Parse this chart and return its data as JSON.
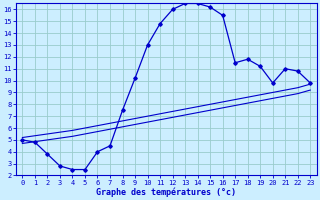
{
  "xlabel": "Graphe des températures (°c)",
  "bg_color": "#cceeff",
  "grid_color": "#99cccc",
  "line_color": "#0000cc",
  "xlim": [
    -0.5,
    23.5
  ],
  "ylim": [
    2,
    16.5
  ],
  "xticks": [
    0,
    1,
    2,
    3,
    4,
    5,
    6,
    7,
    8,
    9,
    10,
    11,
    12,
    13,
    14,
    15,
    16,
    17,
    18,
    19,
    20,
    21,
    22,
    23
  ],
  "yticks": [
    2,
    3,
    4,
    5,
    6,
    7,
    8,
    9,
    10,
    11,
    12,
    13,
    14,
    15,
    16
  ],
  "main_x": [
    0,
    1,
    2,
    3,
    4,
    5,
    6,
    7,
    8,
    9,
    10,
    11,
    12,
    13,
    14,
    15,
    16,
    17,
    18,
    19,
    20,
    21,
    22,
    23
  ],
  "main_y": [
    5.0,
    4.8,
    3.8,
    2.8,
    2.5,
    2.5,
    4.0,
    4.5,
    7.5,
    10.2,
    13.0,
    14.8,
    16.0,
    16.5,
    16.5,
    16.2,
    15.5,
    11.5,
    11.8,
    11.2,
    9.8,
    11.0,
    10.8,
    9.8
  ],
  "line2_x": [
    0,
    2,
    4,
    6,
    8,
    10,
    12,
    14,
    16,
    18,
    20,
    22,
    23
  ],
  "line2_y": [
    5.2,
    5.5,
    5.8,
    6.2,
    6.6,
    7.0,
    7.4,
    7.8,
    8.2,
    8.6,
    9.0,
    9.4,
    9.7
  ],
  "line3_x": [
    0,
    2,
    4,
    6,
    8,
    10,
    12,
    14,
    16,
    18,
    20,
    22,
    23
  ],
  "line3_y": [
    4.7,
    5.0,
    5.3,
    5.7,
    6.1,
    6.5,
    6.9,
    7.3,
    7.7,
    8.1,
    8.5,
    8.9,
    9.2
  ],
  "tick_fontsize": 5,
  "xlabel_fontsize": 6
}
